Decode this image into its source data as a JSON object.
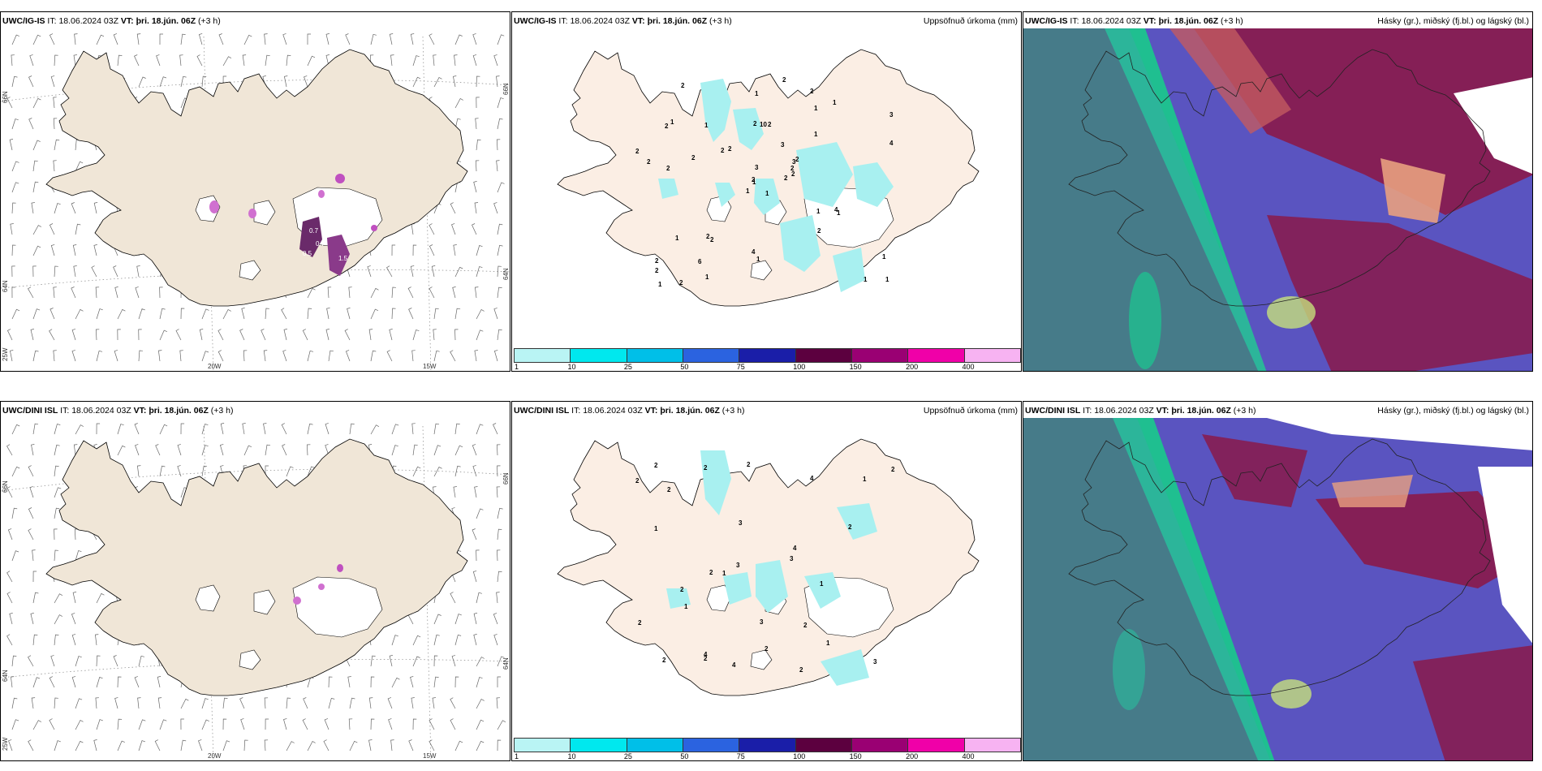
{
  "rows": [
    {
      "model": "UWC/IG-IS",
      "it_label": "IT:",
      "it_value": "18.06.2024 03Z",
      "vt_label": "VT:",
      "vt_value": "þri. 18.jún. 06Z",
      "lead": "(+3 h)"
    },
    {
      "model": "UWC/DINI ISL",
      "it_label": "IT:",
      "it_value": "18.06.2024 03Z",
      "vt_label": "VT:",
      "vt_value": "þri. 18.jún. 06Z",
      "lead": "(+3 h)"
    }
  ],
  "precip_title": "Uppsöfnuð úrkoma (mm)",
  "cloud_title": "Hásky (gr.), miðský (fj.bl.) og lágský (bl.)",
  "axis_labels": {
    "lat_top": "66N",
    "lat_mid": "64N",
    "lon_left": "25W",
    "lon_mid": "20W",
    "lon_right": "15W",
    "lat_right_top": "66N",
    "lat_right_mid": "64N"
  },
  "legend": {
    "labels": [
      "1",
      "10",
      "25",
      "50",
      "75",
      "100",
      "150",
      "200",
      "400"
    ],
    "colors": [
      "#b9f4f4",
      "#00e8ee",
      "#00bfe8",
      "#2b63e0",
      "#1a1ea8",
      "#5c003f",
      "#9a0073",
      "#f000a8",
      "#f7b3f2"
    ]
  },
  "colors": {
    "land": "#f0e6d7",
    "land_precip": "#fbeee4",
    "rain": "#a8f0f0",
    "sea_dark": "#3a7a84",
    "sea_green": "#1fbf90",
    "cloud_mid": "#5a54c0",
    "cloud_high": "#8a1a4a",
    "cloud_low": "#e8a080"
  },
  "precip_labels_top": [
    "1",
    "2",
    "1",
    "2",
    "3",
    "2",
    "2",
    "2",
    "1",
    "2",
    "2",
    "1",
    "2",
    "3",
    "1",
    "1",
    "2",
    "2",
    "3",
    "1",
    "2",
    "2",
    "6",
    "10",
    "2",
    "1",
    "1",
    "1",
    "2",
    "1",
    "4",
    "2",
    "4",
    "3",
    "1",
    "1",
    "2",
    "1",
    "1",
    "4",
    "2",
    "2",
    "2",
    "2",
    "1",
    "2",
    "2",
    "1",
    "1",
    "2"
  ],
  "precip_labels_bottom": [
    "4",
    "2",
    "4",
    "1",
    "2",
    "2",
    "2",
    "3",
    "2",
    "3",
    "1",
    "2",
    "3",
    "3",
    "4",
    "3",
    "1",
    "2",
    "1",
    "2",
    "2",
    "2",
    "4",
    "2",
    "2",
    "2",
    "2",
    "1",
    "2",
    "1"
  ],
  "wind_top_values": [
    "0.7",
    "0.7",
    "0.5",
    "1.5"
  ]
}
